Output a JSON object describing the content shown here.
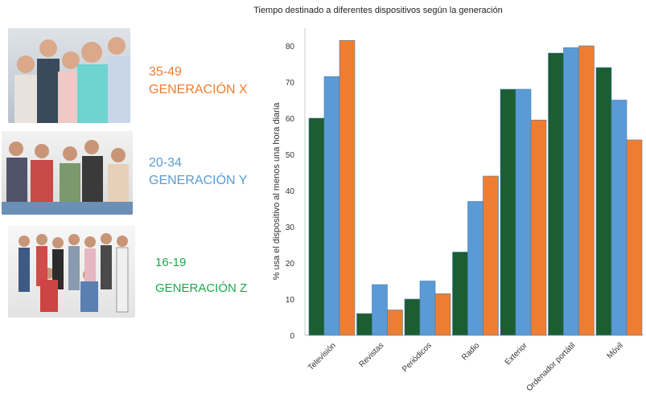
{
  "groups": [
    {
      "age": "35-49",
      "name": "GENERACIÓN X",
      "color": "#ef7d31"
    },
    {
      "age": "20-34",
      "name": "GENERACIÓN Y",
      "color": "#5b9bd5"
    },
    {
      "age": "16-19",
      "name": "GENERACIÓN Z",
      "color": "#1aaa4a"
    }
  ],
  "chart_data": {
    "type": "bar",
    "title": "Tiempo destinado a diferentes dispositivos según la generación",
    "ylabel": "% usa el dispositivo al menos una hora diaria",
    "xlabel": "",
    "ylim": [
      0,
      85
    ],
    "yticks": [
      0,
      10,
      20,
      30,
      40,
      50,
      60,
      70,
      80
    ],
    "categories": [
      "Televisión",
      "Revistas",
      "Periódicos",
      "Radio",
      "Exterior",
      "Ordenador portátil",
      "Móvil"
    ],
    "series": [
      {
        "color": "#1a5e32",
        "values": [
          60,
          6,
          10,
          23,
          68,
          78,
          74
        ]
      },
      {
        "color": "#5b9bd5",
        "values": [
          71.5,
          14,
          15,
          37,
          68,
          79.5,
          65
        ]
      },
      {
        "color": "#ef7d31",
        "values": [
          81.5,
          7,
          11.5,
          44,
          59.5,
          80,
          54
        ]
      }
    ],
    "grid": false,
    "legend": "none"
  }
}
